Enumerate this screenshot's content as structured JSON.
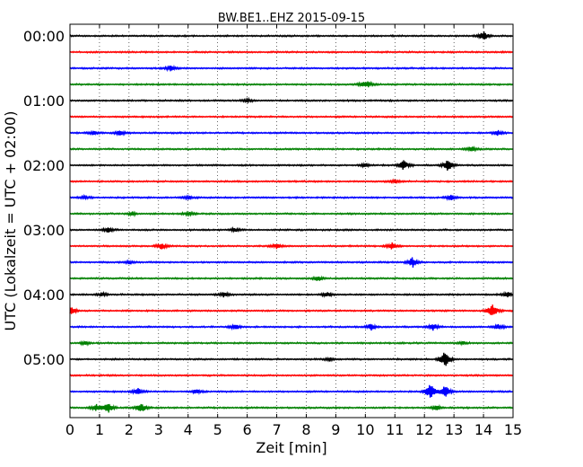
{
  "chart_data": {
    "type": "line",
    "title": "BW.BE1..EHZ 2015-09-15",
    "xlabel": "Zeit  [min]",
    "ylabel": "UTC (Lokalzeit = UTC + 02:00)",
    "xlim": [
      0,
      15
    ],
    "x_ticks": [
      "0",
      "1",
      "2",
      "3",
      "4",
      "5",
      "6",
      "7",
      "8",
      "9",
      "10",
      "11",
      "12",
      "13",
      "14",
      "15"
    ],
    "y_ticks": [
      {
        "label": "00:00",
        "row": 0
      },
      {
        "label": "01:00",
        "row": 4
      },
      {
        "label": "02:00",
        "row": 8
      },
      {
        "label": "03:00",
        "row": 12
      },
      {
        "label": "04:00",
        "row": 16
      },
      {
        "label": "05:00",
        "row": 20
      }
    ],
    "grid": "vertical dotted at each minute",
    "row_interval_min": 15,
    "colors": [
      "#000000",
      "#ff0000",
      "#0000ff",
      "#008000"
    ],
    "series": [
      {
        "start": "00:00",
        "color": "#000000",
        "events": [
          {
            "x": 14.0,
            "amp": 6
          }
        ]
      },
      {
        "start": "00:15",
        "color": "#ff0000",
        "events": []
      },
      {
        "start": "00:30",
        "color": "#0000ff",
        "events": [
          {
            "x": 3.4,
            "amp": 3
          }
        ]
      },
      {
        "start": "00:45",
        "color": "#008000",
        "events": [
          {
            "x": 10.1,
            "amp": 3
          },
          {
            "x": 9.9,
            "amp": 2
          }
        ]
      },
      {
        "start": "01:00",
        "color": "#000000",
        "events": [
          {
            "x": 6.0,
            "amp": 2
          }
        ]
      },
      {
        "start": "01:15",
        "color": "#ff0000",
        "events": []
      },
      {
        "start": "01:30",
        "color": "#0000ff",
        "events": [
          {
            "x": 1.7,
            "amp": 3
          },
          {
            "x": 0.8,
            "amp": 2
          },
          {
            "x": 14.5,
            "amp": 3
          }
        ]
      },
      {
        "start": "01:45",
        "color": "#008000",
        "events": [
          {
            "x": 13.6,
            "amp": 3
          }
        ]
      },
      {
        "start": "02:00",
        "color": "#000000",
        "events": [
          {
            "x": 11.3,
            "amp": 6
          },
          {
            "x": 12.8,
            "amp": 7
          },
          {
            "x": 10.0,
            "amp": 2
          }
        ]
      },
      {
        "start": "02:15",
        "color": "#ff0000",
        "events": [
          {
            "x": 11.0,
            "amp": 2
          }
        ]
      },
      {
        "start": "02:30",
        "color": "#0000ff",
        "events": [
          {
            "x": 0.5,
            "amp": 2
          },
          {
            "x": 4.0,
            "amp": 2
          },
          {
            "x": 12.9,
            "amp": 3
          }
        ]
      },
      {
        "start": "02:45",
        "color": "#008000",
        "events": [
          {
            "x": 2.1,
            "amp": 2
          },
          {
            "x": 4.0,
            "amp": 2
          }
        ]
      },
      {
        "start": "03:00",
        "color": "#000000",
        "events": [
          {
            "x": 1.3,
            "amp": 3
          },
          {
            "x": 5.6,
            "amp": 2
          }
        ]
      },
      {
        "start": "03:15",
        "color": "#ff0000",
        "events": [
          {
            "x": 3.1,
            "amp": 4
          },
          {
            "x": 7.0,
            "amp": 3
          },
          {
            "x": 10.9,
            "amp": 4
          }
        ]
      },
      {
        "start": "03:30",
        "color": "#0000ff",
        "events": [
          {
            "x": 11.6,
            "amp": 6
          },
          {
            "x": 2.0,
            "amp": 2
          }
        ]
      },
      {
        "start": "03:45",
        "color": "#008000",
        "events": [
          {
            "x": 8.4,
            "amp": 3
          }
        ]
      },
      {
        "start": "04:00",
        "color": "#000000",
        "events": [
          {
            "x": 5.2,
            "amp": 3
          },
          {
            "x": 8.7,
            "amp": 3
          },
          {
            "x": 1.1,
            "amp": 2
          },
          {
            "x": 14.8,
            "amp": 3
          }
        ]
      },
      {
        "start": "04:15",
        "color": "#ff0000",
        "events": [
          {
            "x": 14.3,
            "amp": 9
          },
          {
            "x": 0.05,
            "amp": 4
          }
        ]
      },
      {
        "start": "04:30",
        "color": "#0000ff",
        "events": [
          {
            "x": 10.2,
            "amp": 4
          },
          {
            "x": 12.3,
            "amp": 4
          },
          {
            "x": 5.6,
            "amp": 3
          },
          {
            "x": 14.5,
            "amp": 3
          }
        ]
      },
      {
        "start": "04:45",
        "color": "#008000",
        "events": [
          {
            "x": 0.5,
            "amp": 2
          },
          {
            "x": 13.3,
            "amp": 2
          }
        ]
      },
      {
        "start": "05:00",
        "color": "#000000",
        "events": [
          {
            "x": 12.7,
            "amp": 10
          },
          {
            "x": 8.8,
            "amp": 2
          }
        ]
      },
      {
        "start": "05:15",
        "color": "#ff0000",
        "events": []
      },
      {
        "start": "05:30",
        "color": "#0000ff",
        "events": [
          {
            "x": 12.2,
            "amp": 10
          },
          {
            "x": 12.7,
            "amp": 8
          },
          {
            "x": 2.3,
            "amp": 4
          },
          {
            "x": 4.3,
            "amp": 3
          }
        ]
      },
      {
        "start": "05:45",
        "color": "#008000",
        "events": [
          {
            "x": 1.3,
            "amp": 6
          },
          {
            "x": 2.4,
            "amp": 6
          },
          {
            "x": 0.9,
            "amp": 4
          },
          {
            "x": 12.4,
            "amp": 3
          }
        ]
      }
    ]
  }
}
